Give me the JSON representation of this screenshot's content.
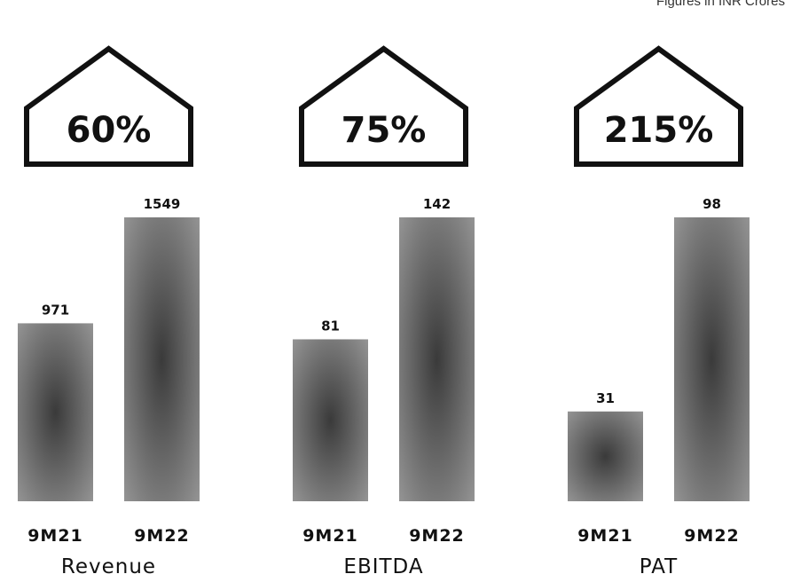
{
  "note": "Figures in INR Crores",
  "colors": {
    "bar_dark": "#3a3a3a",
    "bar_light": "#9a9a9a",
    "outline": "#111111",
    "text": "#111111"
  },
  "chart_data": {
    "type": "bar",
    "unit_note": "Figures in INR Crores",
    "categories": [
      "9M21",
      "9M22"
    ],
    "groups": [
      {
        "name": "Revenue",
        "growth": "60%",
        "values": [
          971,
          1549
        ]
      },
      {
        "name": "EBITDA",
        "growth": "75%",
        "values": [
          81,
          142
        ]
      },
      {
        "name": "PAT",
        "growth": "215%",
        "values": [
          31,
          98
        ]
      }
    ],
    "note": "Each group is scaled independently; the larger value reaches the same height in every group",
    "grid": false,
    "legend": "none"
  }
}
